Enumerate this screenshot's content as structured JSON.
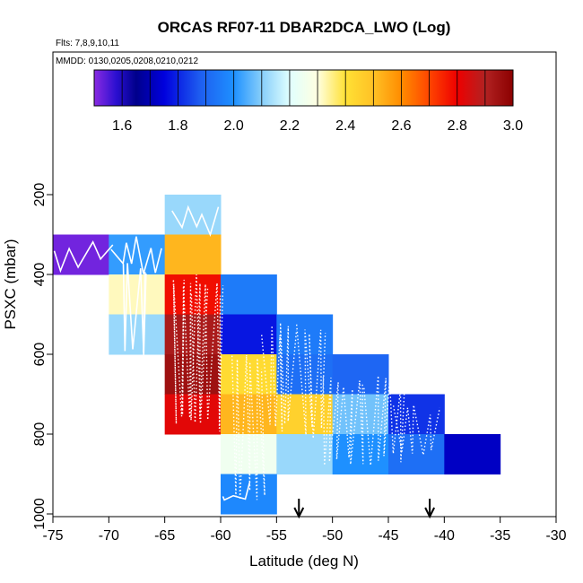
{
  "chart_data": {
    "type": "heatmap",
    "title": "ORCAS RF07-11 DBAR2DCA_LWO (Log)",
    "flights_note": "Flts: 7,8,9,10,11",
    "dates_note": "MMDD: 0130,0205,0208,0210,0212",
    "xlabel": "Latitude (deg N)",
    "ylabel": "PSXC (mbar)",
    "xlim": [
      -75,
      -30
    ],
    "ylim": [
      1000,
      100
    ],
    "x_ticks": [
      -75,
      -70,
      -65,
      -60,
      -55,
      -50,
      -45,
      -40,
      -35,
      -30
    ],
    "x_tick_labels": [
      "-75",
      "-70",
      "-65",
      "-60",
      "-55",
      "-50",
      "-45",
      "-40",
      "-35",
      "-30"
    ],
    "y_ticks": [
      200,
      400,
      600,
      800,
      1000
    ],
    "y_tick_labels": [
      "200",
      "400",
      "600",
      "800",
      "1000"
    ],
    "colorbar": {
      "range": [
        1.5,
        3.0
      ],
      "ticks": [
        1.6,
        1.8,
        2.0,
        2.2,
        2.4,
        2.6,
        2.8,
        3.0
      ],
      "tick_labels": [
        "1.6",
        "1.8",
        "2.0",
        "2.2",
        "2.4",
        "2.6",
        "2.8",
        "3.0"
      ],
      "stops": [
        [
          1.5,
          "#8a2be2"
        ],
        [
          1.58,
          "#2a0fd0"
        ],
        [
          1.65,
          "#00008b"
        ],
        [
          1.75,
          "#0000dd"
        ],
        [
          1.88,
          "#1e5ef0"
        ],
        [
          2.0,
          "#1e90ff"
        ],
        [
          2.1,
          "#87cefa"
        ],
        [
          2.2,
          "#e0ffff"
        ],
        [
          2.3,
          "#ffffe0"
        ],
        [
          2.4,
          "#ffe135"
        ],
        [
          2.5,
          "#ffc125"
        ],
        [
          2.6,
          "#ff8c00"
        ],
        [
          2.7,
          "#ff4500"
        ],
        [
          2.8,
          "#ee0000"
        ],
        [
          2.9,
          "#b22222"
        ],
        [
          3.0,
          "#8b0000"
        ]
      ]
    },
    "cells": [
      {
        "lat": [
          -75,
          -70
        ],
        "p": [
          300,
          400
        ],
        "value": 1.52
      },
      {
        "lat": [
          -70,
          -65
        ],
        "p": [
          300,
          400
        ],
        "value": 2.02
      },
      {
        "lat": [
          -65,
          -60
        ],
        "p": [
          200,
          300
        ],
        "value": 2.12
      },
      {
        "lat": [
          -65,
          -60
        ],
        "p": [
          300,
          400
        ],
        "value": 2.52
      },
      {
        "lat": [
          -70,
          -65
        ],
        "p": [
          400,
          500
        ],
        "value": 2.32
      },
      {
        "lat": [
          -65,
          -60
        ],
        "p": [
          400,
          500
        ],
        "value": 2.78
      },
      {
        "lat": [
          -60,
          -55
        ],
        "p": [
          400,
          500
        ],
        "value": 1.95
      },
      {
        "lat": [
          -70,
          -65
        ],
        "p": [
          500,
          600
        ],
        "value": 2.12
      },
      {
        "lat": [
          -65,
          -60
        ],
        "p": [
          500,
          600
        ],
        "value": 2.92
      },
      {
        "lat": [
          -60,
          -55
        ],
        "p": [
          500,
          600
        ],
        "value": 1.78
      },
      {
        "lat": [
          -55,
          -50
        ],
        "p": [
          500,
          600
        ],
        "value": 1.95
      },
      {
        "lat": [
          -65,
          -60
        ],
        "p": [
          600,
          700
        ],
        "value": 2.95
      },
      {
        "lat": [
          -60,
          -55
        ],
        "p": [
          600,
          700
        ],
        "value": 2.42
      },
      {
        "lat": [
          -55,
          -50
        ],
        "p": [
          600,
          700
        ],
        "value": 1.92
      },
      {
        "lat": [
          -50,
          -45
        ],
        "p": [
          600,
          700
        ],
        "value": 1.9
      },
      {
        "lat": [
          -65,
          -60
        ],
        "p": [
          700,
          800
        ],
        "value": 2.82
      },
      {
        "lat": [
          -60,
          -55
        ],
        "p": [
          700,
          800
        ],
        "value": 2.52
      },
      {
        "lat": [
          -55,
          -50
        ],
        "p": [
          700,
          800
        ],
        "value": 2.45
      },
      {
        "lat": [
          -50,
          -45
        ],
        "p": [
          700,
          800
        ],
        "value": 2.08
      },
      {
        "lat": [
          -45,
          -40
        ],
        "p": [
          700,
          800
        ],
        "value": 1.82
      },
      {
        "lat": [
          -60,
          -55
        ],
        "p": [
          800,
          900
        ],
        "value": 2.25
      },
      {
        "lat": [
          -55,
          -50
        ],
        "p": [
          800,
          900
        ],
        "value": 2.12
      },
      {
        "lat": [
          -50,
          -45
        ],
        "p": [
          800,
          900
        ],
        "value": 2.0
      },
      {
        "lat": [
          -45,
          -40
        ],
        "p": [
          800,
          900
        ],
        "value": 1.92
      },
      {
        "lat": [
          -40,
          -35
        ],
        "p": [
          800,
          900
        ],
        "value": 1.72
      },
      {
        "lat": [
          -60,
          -55
        ],
        "p": [
          900,
          1000
        ],
        "value": 1.98
      }
    ],
    "arrows_lat": [
      -53.0,
      -41.3
    ]
  }
}
